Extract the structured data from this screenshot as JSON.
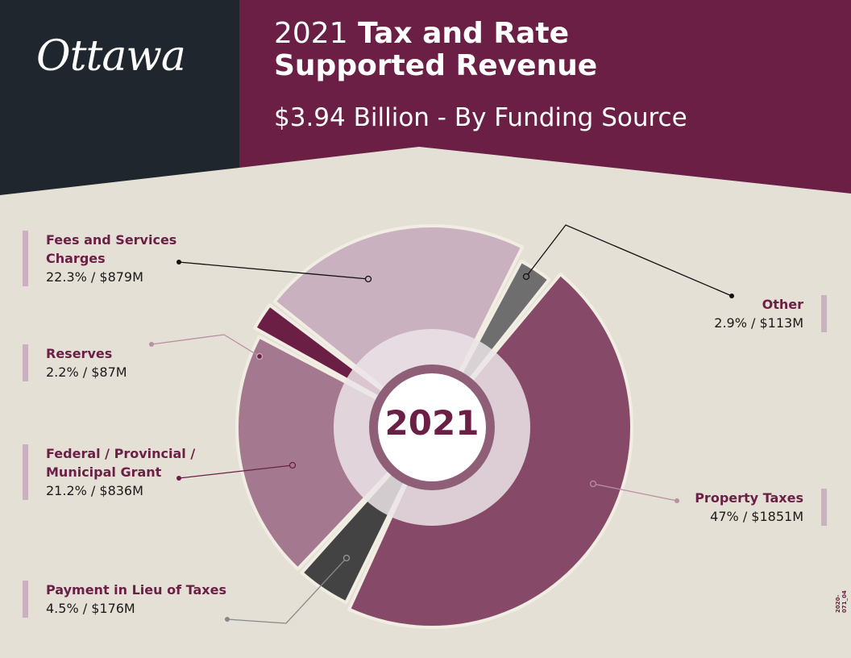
{
  "header": {
    "logo_text": "Ottawa",
    "title_year": "2021",
    "title_line1": "Tax and Rate",
    "title_line2": "Supported Revenue",
    "subtitle": "$3.94 Billion - By Funding Source"
  },
  "doc_code": "2020-071_04",
  "chart_data": {
    "type": "pie",
    "title": "2021 Tax and Rate Supported Revenue",
    "subtitle": "$3.94 Billion - By Funding Source",
    "center_label": "2021",
    "slices": [
      {
        "name": "Property Taxes",
        "percent": 47,
        "value_label": "47% / $1851M",
        "value_m": 1851,
        "color": "#864a68"
      },
      {
        "name": "Payment in Lieu of Taxes",
        "percent": 4.5,
        "value_label": "4.5% / $176M",
        "value_m": 176,
        "color": "#434343"
      },
      {
        "name": "Federal / Provincial / Municipal Grant",
        "percent": 21.2,
        "value_label": "21.2% / $836M",
        "value_m": 836,
        "color": "#a4798f"
      },
      {
        "name": "Reserves",
        "percent": 2.2,
        "value_label": "2.2% / $87M",
        "value_m": 87,
        "color": "#6b1f45"
      },
      {
        "name": "Fees and Services Charges",
        "percent": 22.3,
        "value_label": "22.3% / $879M",
        "value_m": 879,
        "color": "#c9b1bf"
      },
      {
        "name": "Other",
        "percent": 2.9,
        "value_label": "2.9% / $113M",
        "value_m": 113,
        "color": "#6e6e6e"
      }
    ]
  },
  "legend": {
    "fees": {
      "name_line1": "Fees and Services",
      "name_line2": "Charges",
      "value": "22.3% / $879M"
    },
    "reserves": {
      "name": "Reserves",
      "value": "2.2% / $87M"
    },
    "grant": {
      "name_line1": "Federal / Provincial /",
      "name_line2": "Municipal Grant",
      "value": "21.2% / $836M"
    },
    "payment": {
      "name": "Payment in Lieu of Taxes",
      "value": "4.5% / $176M"
    },
    "other": {
      "name": "Other",
      "value": "2.9% / $113M"
    },
    "property": {
      "name": "Property Taxes",
      "value": "47% / $1851M"
    }
  }
}
